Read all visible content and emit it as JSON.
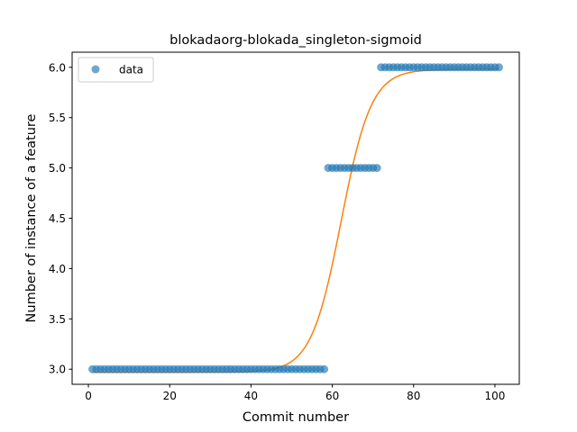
{
  "chart_data": {
    "type": "scatter",
    "title": "blokadaorg-blokada_singleton-sigmoid",
    "xlabel": "Commit number",
    "ylabel": "Number of instance of a feature",
    "xlim": [
      -4.0,
      106.0
    ],
    "ylim": [
      2.85,
      6.15
    ],
    "xticks": [
      0,
      20,
      40,
      60,
      80,
      100
    ],
    "xtick_labels": [
      "0",
      "20",
      "40",
      "60",
      "80",
      "100"
    ],
    "yticks": [
      3.0,
      3.5,
      4.0,
      4.5,
      5.0,
      5.5,
      6.0
    ],
    "ytick_labels": [
      "3.0",
      "3.5",
      "4.0",
      "4.5",
      "5.0",
      "5.5",
      "6.0"
    ],
    "grid": false,
    "legend": {
      "position": "upper-left",
      "entries": [
        "data"
      ]
    },
    "colors": {
      "data": "#1f77b4",
      "fit": "#ff7f0e"
    },
    "series": [
      {
        "name": "data",
        "kind": "scatter",
        "segments": [
          {
            "x_from": 1,
            "x_to": 58,
            "y": 3.0
          },
          {
            "x_from": 59,
            "x_to": 71,
            "y": 5.0
          },
          {
            "x_from": 72,
            "x_to": 101,
            "y": 6.0
          }
        ]
      },
      {
        "kind": "line",
        "model": "sigmoid",
        "params": {
          "lower": 2.97,
          "upper": 5.98,
          "midpoint": 62.2,
          "rate": 0.27
        },
        "x_range": [
          1,
          101
        ]
      }
    ]
  }
}
